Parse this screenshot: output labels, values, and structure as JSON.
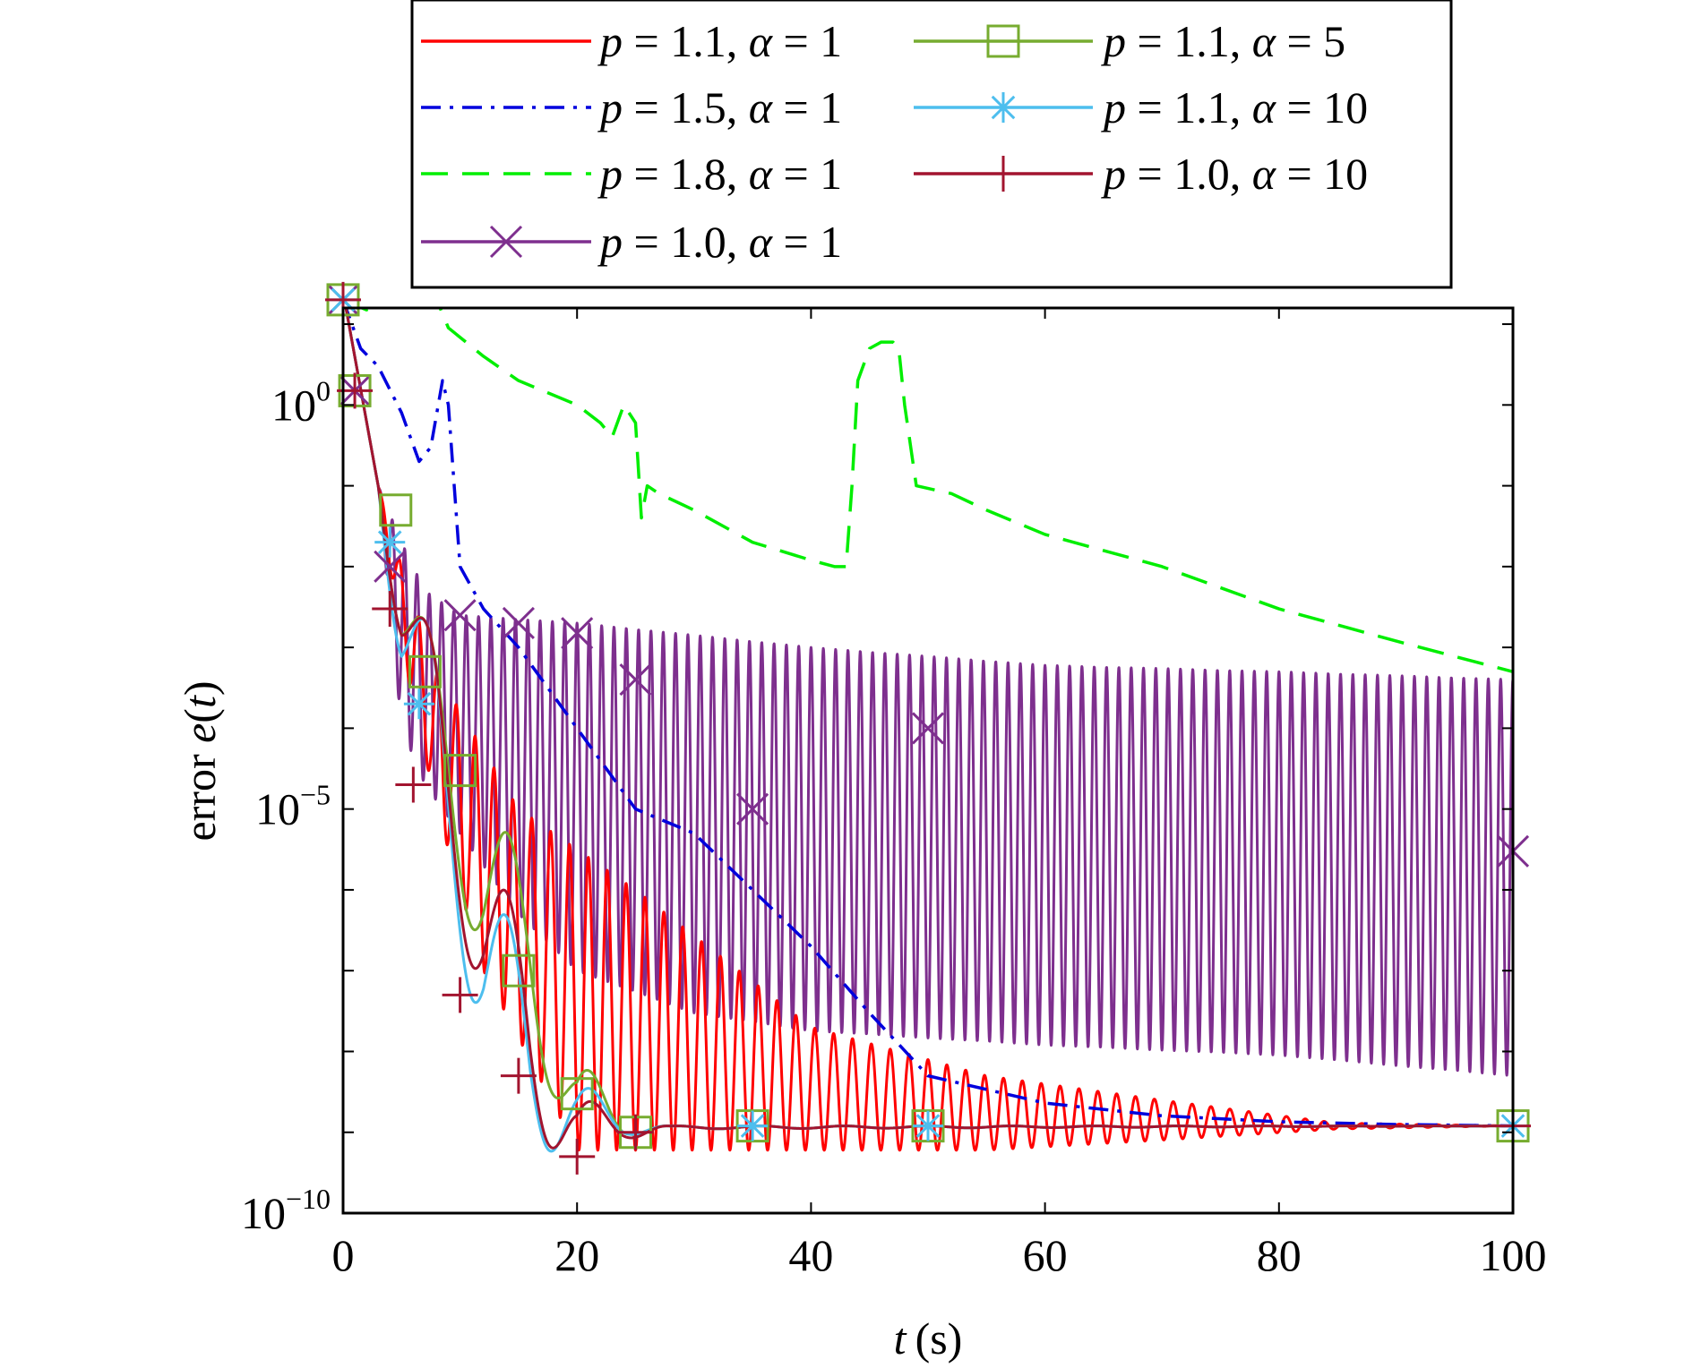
{
  "chart_data": {
    "type": "line",
    "xlabel": {
      "var": "t",
      "unit": "(s)"
    },
    "ylabel": {
      "prefix": "error ",
      "var": "e",
      "open": "(",
      "arg": "t",
      "close": ")"
    },
    "x_scale": "linear",
    "xlim": [
      0,
      100
    ],
    "x_ticks": [
      0,
      20,
      40,
      60,
      80,
      100
    ],
    "y_scale": "log",
    "ylim_log10": [
      -10,
      1.2
    ],
    "y_ticks": [
      {
        "base": "10",
        "exp": "0",
        "value": 1
      },
      {
        "base": "10",
        "exp": "−5",
        "value": 1e-05
      },
      {
        "base": "10",
        "exp": "−10",
        "value": 1e-10
      }
    ],
    "grid": false,
    "legend_position": "top, outside plot",
    "series": [
      {
        "name": "p = 1.1, α = 1",
        "label": {
          "p": "1.1",
          "alpha": "1"
        },
        "color": "#ff0000",
        "style": "solid",
        "marker": "none",
        "pattern": "decaying-oscillation",
        "envelope_high": [
          [
            0,
            25
          ],
          [
            3,
            0.1
          ],
          [
            5,
            0.01
          ],
          [
            8,
            0.0005
          ],
          [
            15,
            1e-05
          ],
          [
            25,
            1e-06
          ],
          [
            40,
            2e-08
          ],
          [
            55,
            5e-09
          ],
          [
            70,
            2.5e-09
          ],
          [
            85,
            1.3e-09
          ],
          [
            100,
            1.2e-09
          ]
        ],
        "envelope_low": [
          [
            0,
            25
          ],
          [
            3,
            0.1
          ],
          [
            5,
            0.001
          ],
          [
            8,
            1e-05
          ],
          [
            12,
            1e-07
          ],
          [
            20,
            6e-10
          ],
          [
            40,
            6e-10
          ],
          [
            55,
            6e-10
          ],
          [
            70,
            8e-10
          ],
          [
            85,
            1.1e-09
          ],
          [
            100,
            1.2e-09
          ]
        ],
        "cycles": 62
      },
      {
        "name": "p = 1.5, α = 1",
        "label": {
          "p": "1.5",
          "alpha": "1"
        },
        "color": "#0000dd",
        "style": "dashdot",
        "marker": "none",
        "points": [
          [
            0,
            20
          ],
          [
            1.5,
            5
          ],
          [
            3,
            3
          ],
          [
            5,
            0.8
          ],
          [
            6.5,
            0.2
          ],
          [
            7.5,
            0.3
          ],
          [
            8.5,
            2
          ],
          [
            9,
            1
          ],
          [
            10,
            0.01
          ],
          [
            12,
            0.003
          ],
          [
            15,
            0.001
          ],
          [
            20,
            0.0001
          ],
          [
            25,
            1e-05
          ],
          [
            30,
            5e-06
          ],
          [
            35,
            1e-06
          ],
          [
            40,
            2e-07
          ],
          [
            45,
            3e-08
          ],
          [
            50,
            5e-09
          ],
          [
            60,
            2.3e-09
          ],
          [
            70,
            1.6e-09
          ],
          [
            80,
            1.35e-09
          ],
          [
            90,
            1.25e-09
          ],
          [
            100,
            1.2e-09
          ]
        ]
      },
      {
        "name": "p = 1.8, α = 1",
        "label": {
          "p": "1.8",
          "alpha": "1"
        },
        "color": "#00ee00",
        "style": "dashed",
        "marker": "none",
        "points": [
          [
            0,
            20
          ],
          [
            2,
            15
          ],
          [
            4,
            20
          ],
          [
            6,
            20
          ],
          [
            8,
            20
          ],
          [
            9,
            9
          ],
          [
            12,
            4
          ],
          [
            15,
            2
          ],
          [
            20,
            1
          ],
          [
            22,
            0.6
          ],
          [
            23,
            0.4
          ],
          [
            24,
            1
          ],
          [
            25,
            0.6
          ],
          [
            25.5,
            0.04
          ],
          [
            26,
            0.1
          ],
          [
            27,
            0.08
          ],
          [
            30,
            0.05
          ],
          [
            35,
            0.02
          ],
          [
            40,
            0.012
          ],
          [
            42,
            0.01
          ],
          [
            43,
            0.01
          ],
          [
            43.5,
            0.1
          ],
          [
            44,
            2
          ],
          [
            45,
            5
          ],
          [
            46,
            6
          ],
          [
            47,
            6
          ],
          [
            47.5,
            5
          ],
          [
            48,
            1
          ],
          [
            49,
            0.1
          ],
          [
            52,
            0.08
          ],
          [
            55,
            0.05
          ],
          [
            60,
            0.025
          ],
          [
            70,
            0.01
          ],
          [
            80,
            0.003
          ],
          [
            90,
            0.0012
          ],
          [
            100,
            0.0005
          ]
        ]
      },
      {
        "name": "p = 1.0, α = 1",
        "label": {
          "p": "1.0",
          "alpha": "1"
        },
        "color": "#7e2f8e",
        "style": "solid",
        "marker": "x",
        "pattern": "sustained-oscillation",
        "envelope_high": [
          [
            0,
            25
          ],
          [
            3,
            0.1
          ],
          [
            5,
            0.02
          ],
          [
            7,
            0.005
          ],
          [
            10,
            0.0025
          ],
          [
            20,
            0.002
          ],
          [
            40,
            0.001
          ],
          [
            60,
            0.0006
          ],
          [
            80,
            0.0005
          ],
          [
            100,
            0.0004
          ]
        ],
        "envelope_low": [
          [
            0,
            25
          ],
          [
            3,
            0.1
          ],
          [
            5,
            0.0001
          ],
          [
            7,
            2e-05
          ],
          [
            10,
            5e-06
          ],
          [
            15,
            5e-07
          ],
          [
            20,
            1e-07
          ],
          [
            30,
            3e-08
          ],
          [
            40,
            1.8e-08
          ],
          [
            60,
            1.2e-08
          ],
          [
            80,
            9e-09
          ],
          [
            100,
            5e-09
          ]
        ],
        "cycles": 95,
        "markers": [
          [
            0,
            20
          ],
          [
            1,
            1.5
          ],
          [
            4,
            0.01
          ],
          [
            10,
            0.0025
          ],
          [
            15,
            0.002
          ],
          [
            20,
            0.0015
          ],
          [
            25,
            0.0004
          ],
          [
            50,
            0.0001
          ],
          [
            35,
            1e-05
          ],
          [
            100,
            3e-06
          ]
        ]
      },
      {
        "name": "p = 1.1, α = 5",
        "label": {
          "p": "1.1",
          "alpha": "5"
        },
        "color": "#77ac30",
        "style": "solid",
        "marker": "square",
        "pattern": "fast-decaying-oscillation",
        "envelope_high": [
          [
            0,
            25
          ],
          [
            3,
            0.1
          ],
          [
            5,
            0.01
          ],
          [
            8,
            0.001
          ],
          [
            12,
            3e-05
          ],
          [
            16,
            1e-06
          ],
          [
            20,
            1e-08
          ],
          [
            24,
            1.5e-09
          ],
          [
            28,
            1.2e-09
          ],
          [
            100,
            1.2e-09
          ]
        ],
        "envelope_low": [
          [
            0,
            25
          ],
          [
            3,
            0.1
          ],
          [
            5,
            0.0005
          ],
          [
            8,
            1e-05
          ],
          [
            12,
            1e-07
          ],
          [
            16,
            1e-08
          ],
          [
            20,
            8e-10
          ],
          [
            24,
            9e-10
          ],
          [
            28,
            1.1e-09
          ],
          [
            100,
            1.2e-09
          ]
        ],
        "cycles": 14,
        "markers": [
          [
            0,
            20
          ],
          [
            1,
            1.5
          ],
          [
            4.5,
            0.05
          ],
          [
            7,
            0.0005
          ],
          [
            10,
            3e-05
          ],
          [
            15,
            1e-07
          ],
          [
            20,
            3e-09
          ],
          [
            25,
            1e-09
          ],
          [
            35,
            1.2e-09
          ],
          [
            50,
            1.2e-09
          ],
          [
            100,
            1.2e-09
          ]
        ]
      },
      {
        "name": "p = 1.1, α = 10",
        "label": {
          "p": "1.1",
          "alpha": "10"
        },
        "color": "#4dbeee",
        "style": "solid",
        "marker": "asterisk",
        "pattern": "fast-decaying-oscillation",
        "envelope_high": [
          [
            0,
            25
          ],
          [
            3,
            0.1
          ],
          [
            5,
            0.01
          ],
          [
            8,
            0.001
          ],
          [
            12,
            5e-06
          ],
          [
            16,
            5e-08
          ],
          [
            20,
            5e-09
          ],
          [
            24,
            1.5e-09
          ],
          [
            28,
            1.2e-09
          ],
          [
            100,
            1.2e-09
          ]
        ],
        "envelope_low": [
          [
            0,
            25
          ],
          [
            3,
            0.1
          ],
          [
            5,
            0.0002
          ],
          [
            8,
            3e-06
          ],
          [
            12,
            1e-08
          ],
          [
            16,
            5e-10
          ],
          [
            20,
            7e-10
          ],
          [
            24,
            9e-10
          ],
          [
            28,
            1.1e-09
          ],
          [
            100,
            1.2e-09
          ]
        ],
        "cycles": 14,
        "markers": [
          [
            0,
            20
          ],
          [
            4,
            0.02
          ],
          [
            6.5,
            0.0002
          ],
          [
            35,
            1.2e-09
          ],
          [
            50,
            1.2e-09
          ],
          [
            100,
            1.2e-09
          ]
        ]
      },
      {
        "name": "p = 1.0, α = 10",
        "label": {
          "p": "1.0",
          "alpha": "10"
        },
        "color": "#a2142f",
        "style": "solid",
        "marker": "plus",
        "pattern": "fast-decaying-oscillation",
        "envelope_high": [
          [
            0,
            25
          ],
          [
            3,
            0.1
          ],
          [
            5,
            0.01
          ],
          [
            8,
            0.001
          ],
          [
            12,
            1e-05
          ],
          [
            16,
            1e-07
          ],
          [
            20,
            3e-09
          ],
          [
            24,
            1.5e-09
          ],
          [
            28,
            1.2e-09
          ],
          [
            100,
            1.2e-09
          ]
        ],
        "envelope_low": [
          [
            0,
            25
          ],
          [
            3,
            0.1
          ],
          [
            5,
            0.0005
          ],
          [
            8,
            5e-06
          ],
          [
            12,
            3e-08
          ],
          [
            16,
            8e-10
          ],
          [
            20,
            5e-10
          ],
          [
            24,
            8e-10
          ],
          [
            28,
            1.1e-09
          ],
          [
            100,
            1.2e-09
          ]
        ],
        "cycles": 14,
        "markers": [
          [
            0,
            20
          ],
          [
            1,
            1.5
          ],
          [
            4,
            0.003
          ],
          [
            6,
            2e-05
          ],
          [
            10,
            5e-08
          ],
          [
            15,
            5e-09
          ],
          [
            20,
            5e-10
          ],
          [
            25,
            1e-09
          ],
          [
            100,
            1.2e-09
          ]
        ]
      }
    ]
  }
}
